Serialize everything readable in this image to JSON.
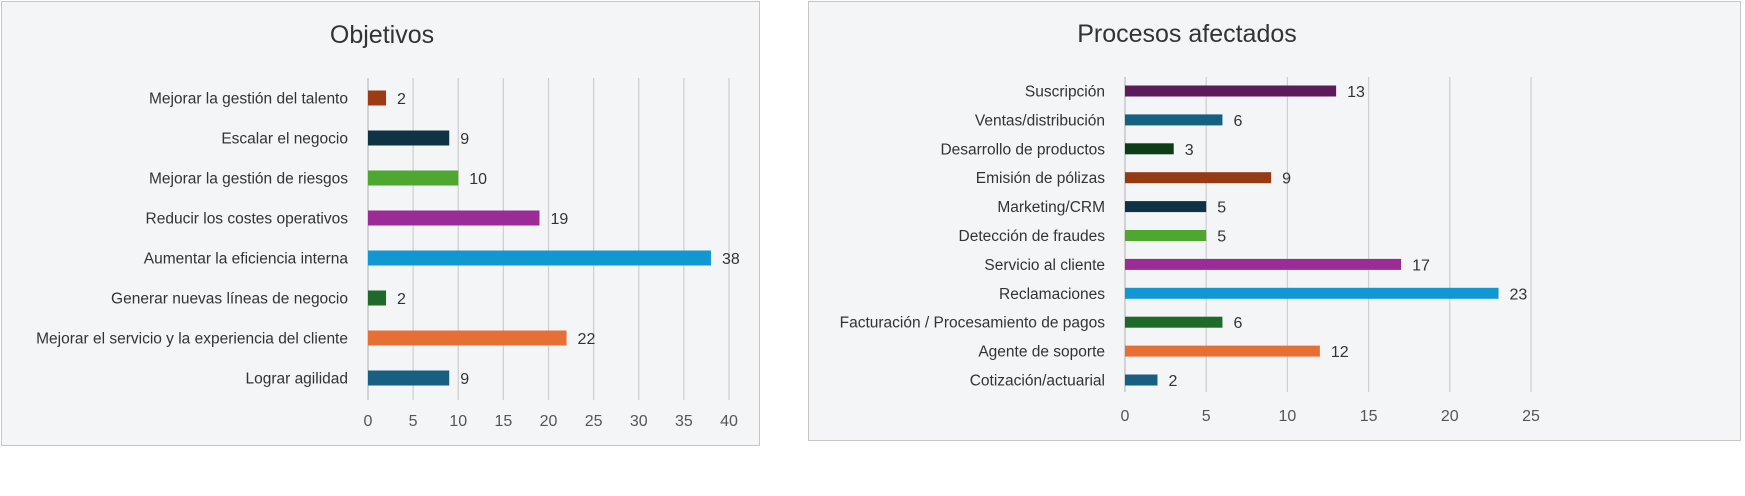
{
  "chart_data": [
    {
      "type": "bar",
      "orientation": "horizontal",
      "title": "Objetivos",
      "xlim": [
        0,
        40
      ],
      "ticks": [
        0,
        5,
        10,
        15,
        20,
        25,
        30,
        35,
        40
      ],
      "grid": true,
      "categories": [
        "Mejorar la gestión del talento",
        "Escalar el negocio",
        "Mejorar la gestión de riesgos",
        "Reducir los costes operativos",
        "Aumentar la eficiencia interna",
        "Generar nuevas líneas de negocio",
        "Mejorar el servicio y la experiencia del cliente",
        "Lograr agilidad"
      ],
      "values": [
        2,
        9,
        10,
        19,
        38,
        2,
        22,
        9
      ],
      "colors": [
        "#9e3b14",
        "#0f3245",
        "#4ea72e",
        "#9b2c97",
        "#1197d1",
        "#1f6a2a",
        "#e86f33",
        "#185f82"
      ]
    },
    {
      "type": "bar",
      "orientation": "horizontal",
      "title": "Procesos afectados",
      "xlim": [
        0,
        25
      ],
      "ticks": [
        0,
        5,
        10,
        15,
        20,
        25
      ],
      "grid": true,
      "categories": [
        "Suscripción",
        "Ventas/distribución",
        "Desarrollo de productos",
        "Emisión de pólizas",
        "Marketing/CRM",
        "Detección de fraudes",
        "Servicio al cliente",
        "Reclamaciones",
        "Facturación / Procesamiento de pagos",
        "Agente de soporte",
        "Cotización/actuarial"
      ],
      "values": [
        13,
        6,
        3,
        9,
        5,
        5,
        17,
        23,
        6,
        12,
        2
      ],
      "colors": [
        "#5c1b5a",
        "#146184",
        "#0b3d16",
        "#953a12",
        "#0f3245",
        "#4ea72e",
        "#9b2c97",
        "#1197d1",
        "#1f6a2a",
        "#e86f33",
        "#185f82"
      ]
    }
  ]
}
